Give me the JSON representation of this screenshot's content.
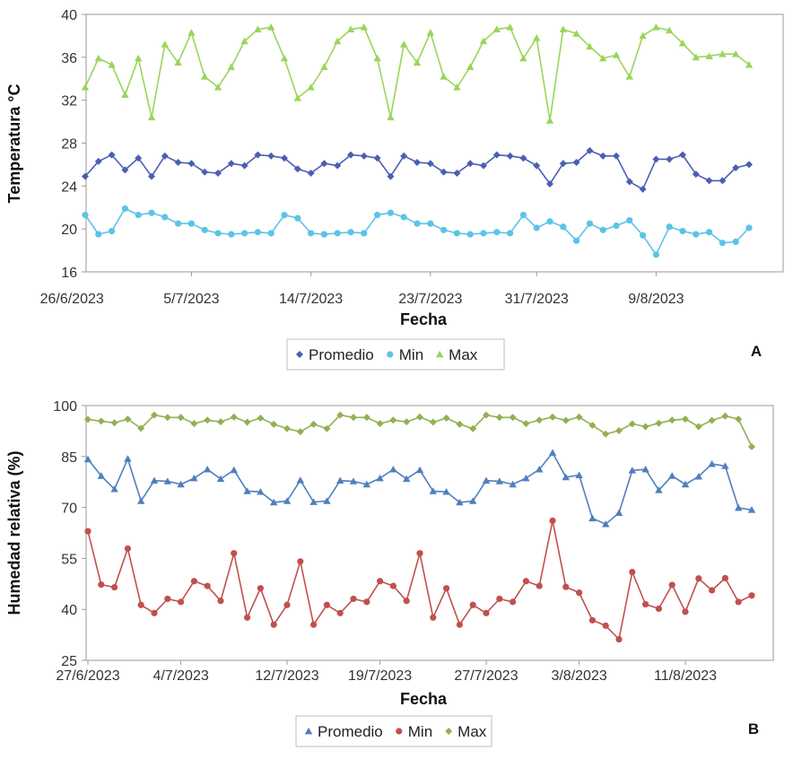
{
  "chart_data": [
    {
      "type": "line",
      "panel_label": "A",
      "xlabel": "Fecha",
      "ylabel": "Temperatura °C",
      "ylim": [
        16,
        40
      ],
      "yticks": [
        16,
        20,
        24,
        28,
        32,
        36,
        40
      ],
      "grid": false,
      "legend_position": "bottom",
      "x_start": "27/6/2023",
      "xtick_labels": [
        "26/6/2023",
        "5/7/2023",
        "14/7/2023",
        "23/7/2023",
        "31/7/2023",
        "9/8/2023"
      ],
      "series": [
        {
          "name": "Promedio",
          "color": "#4a5fb4",
          "marker": "diamond",
          "values": [
            24.9,
            26.3,
            26.9,
            25.5,
            26.6,
            24.9,
            26.8,
            26.2,
            26.1,
            25.3,
            25.2,
            26.1,
            25.9,
            26.9,
            26.8,
            26.6,
            25.6,
            25.2,
            26.1,
            25.9,
            26.9,
            26.8,
            26.6,
            24.9,
            26.8,
            26.2,
            26.1,
            25.3,
            25.2,
            26.1,
            25.9,
            26.9,
            26.8,
            26.6,
            25.9,
            24.2,
            26.1,
            26.2,
            27.3,
            26.8,
            26.8,
            24.4,
            23.7,
            26.5,
            26.5,
            26.9,
            25.1,
            24.5,
            24.5,
            25.7,
            26.0
          ]
        },
        {
          "name": "Min",
          "color": "#5bc3e8",
          "marker": "circle",
          "values": [
            21.3,
            19.5,
            19.8,
            21.9,
            21.3,
            21.5,
            21.1,
            20.5,
            20.5,
            19.9,
            19.6,
            19.5,
            19.6,
            19.7,
            19.6,
            21.3,
            21.0,
            19.6,
            19.5,
            19.6,
            19.7,
            19.6,
            21.3,
            21.5,
            21.1,
            20.5,
            20.5,
            19.9,
            19.6,
            19.5,
            19.6,
            19.7,
            19.6,
            21.3,
            20.1,
            20.7,
            20.2,
            18.9,
            20.5,
            19.9,
            20.3,
            20.8,
            19.4,
            17.6,
            20.2,
            19.8,
            19.5,
            19.7,
            18.7,
            18.8,
            20.1
          ]
        },
        {
          "name": "Max",
          "color": "#9ad55a",
          "marker": "triangle",
          "values": [
            33.2,
            35.9,
            35.3,
            32.5,
            35.9,
            30.4,
            37.2,
            35.5,
            38.3,
            34.2,
            33.2,
            35.1,
            37.5,
            38.6,
            38.8,
            35.9,
            32.2,
            33.2,
            35.1,
            37.5,
            38.6,
            38.8,
            35.9,
            30.4,
            37.2,
            35.5,
            38.3,
            34.2,
            33.2,
            35.1,
            37.5,
            38.6,
            38.8,
            35.9,
            37.8,
            30.1,
            38.6,
            38.2,
            37.0,
            35.9,
            36.2,
            34.2,
            38.0,
            38.8,
            38.5,
            37.3,
            36.0,
            36.1,
            36.3,
            36.3,
            35.3
          ]
        }
      ]
    },
    {
      "type": "line",
      "panel_label": "B",
      "xlabel": "Fecha",
      "ylabel": "Humedad relativa (%)",
      "ylim": [
        25,
        100
      ],
      "yticks": [
        25,
        40,
        55,
        70,
        85,
        100
      ],
      "grid": false,
      "legend_position": "bottom",
      "x_start": "27/6/2023",
      "xtick_labels": [
        "27/6/2023",
        "4/7/2023",
        "12/7/2023",
        "19/7/2023",
        "27/7/2023",
        "3/8/2023",
        "11/8/2023"
      ],
      "series": [
        {
          "name": "Promedio",
          "color": "#4f7fbe",
          "marker": "triangle",
          "values": [
            84.2,
            79.3,
            75.4,
            84.3,
            71.9,
            77.9,
            77.7,
            76.8,
            78.6,
            81.2,
            78.4,
            81.0,
            74.8,
            74.6,
            71.5,
            71.9,
            78.0,
            71.6,
            71.9,
            77.9,
            77.7,
            76.8,
            78.6,
            81.2,
            78.4,
            81.0,
            74.8,
            74.6,
            71.5,
            71.9,
            77.9,
            77.7,
            76.8,
            78.6,
            81.2,
            86.1,
            78.9,
            79.5,
            66.8,
            65.1,
            68.4,
            80.9,
            81.2,
            75.1,
            79.3,
            76.8,
            79.1,
            82.8,
            82.2,
            69.9,
            69.3
          ]
        },
        {
          "name": "Min",
          "color": "#c0504d",
          "marker": "circle",
          "values": [
            63.0,
            47.3,
            46.5,
            57.9,
            41.3,
            38.9,
            43.1,
            42.2,
            48.3,
            46.9,
            42.5,
            56.5,
            37.6,
            46.2,
            35.5,
            41.3,
            54.1,
            35.5,
            41.3,
            38.9,
            43.1,
            42.2,
            48.3,
            46.9,
            42.5,
            56.5,
            37.6,
            46.2,
            35.5,
            41.3,
            38.9,
            43.1,
            42.2,
            48.3,
            46.9,
            66.1,
            46.6,
            44.9,
            36.8,
            35.2,
            31.2,
            51.0,
            41.5,
            40.2,
            47.2,
            39.3,
            49.1,
            45.6,
            49.2,
            42.2,
            44.1
          ]
        },
        {
          "name": "Max",
          "color": "#92b050",
          "marker": "diamond",
          "values": [
            95.9,
            95.4,
            94.9,
            96.0,
            93.3,
            97.2,
            96.5,
            96.5,
            94.7,
            95.7,
            95.2,
            96.6,
            95.1,
            96.3,
            94.5,
            93.2,
            92.3,
            94.5,
            93.2,
            97.2,
            96.5,
            96.5,
            94.7,
            95.7,
            95.2,
            96.6,
            95.1,
            96.3,
            94.5,
            93.2,
            97.2,
            96.5,
            96.5,
            94.7,
            95.7,
            96.6,
            95.6,
            96.6,
            94.2,
            91.6,
            92.6,
            94.6,
            93.8,
            94.8,
            95.7,
            96.0,
            93.8,
            95.6,
            96.9,
            96.0,
            87.9
          ]
        }
      ]
    }
  ]
}
